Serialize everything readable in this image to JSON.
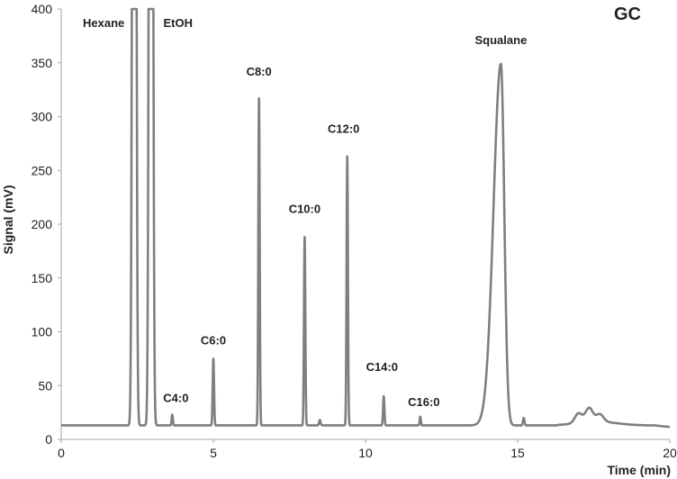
{
  "chart_data": {
    "type": "line",
    "title": "GC",
    "xlabel": "Time (min)",
    "ylabel": "Signal (mV)",
    "xlim": [
      0,
      20
    ],
    "ylim": [
      0,
      400
    ],
    "x_ticks": [
      0,
      5,
      10,
      15,
      20
    ],
    "y_ticks": [
      0,
      50,
      100,
      150,
      200,
      250,
      300,
      350,
      400
    ],
    "grid": false,
    "line_color": "#7f7f7f",
    "baseline": 13,
    "peaks": [
      {
        "name": "Hexane",
        "x": 2.4,
        "y": 400,
        "clipped": true
      },
      {
        "name": "EtOH",
        "x": 2.95,
        "y": 400,
        "clipped": true
      },
      {
        "name": "C4:0",
        "x": 3.65,
        "y": 23
      },
      {
        "name": "C6:0",
        "x": 5.0,
        "y": 75
      },
      {
        "name": "C8:0",
        "x": 6.5,
        "y": 317
      },
      {
        "name": "C10:0",
        "x": 8.0,
        "y": 188
      },
      {
        "name": "C12:0",
        "x": 9.4,
        "y": 263
      },
      {
        "name": "C14:0",
        "x": 10.6,
        "y": 40
      },
      {
        "name": "C16:0",
        "x": 11.8,
        "y": 21
      },
      {
        "name": "Squalane",
        "x": 14.45,
        "y": 349
      }
    ],
    "minor_peaks": [
      {
        "x": 8.5,
        "y": 18
      },
      {
        "x": 15.2,
        "y": 20
      },
      {
        "x": 17.0,
        "y": 22
      },
      {
        "x": 17.35,
        "y": 26
      },
      {
        "x": 17.7,
        "y": 20
      }
    ]
  }
}
